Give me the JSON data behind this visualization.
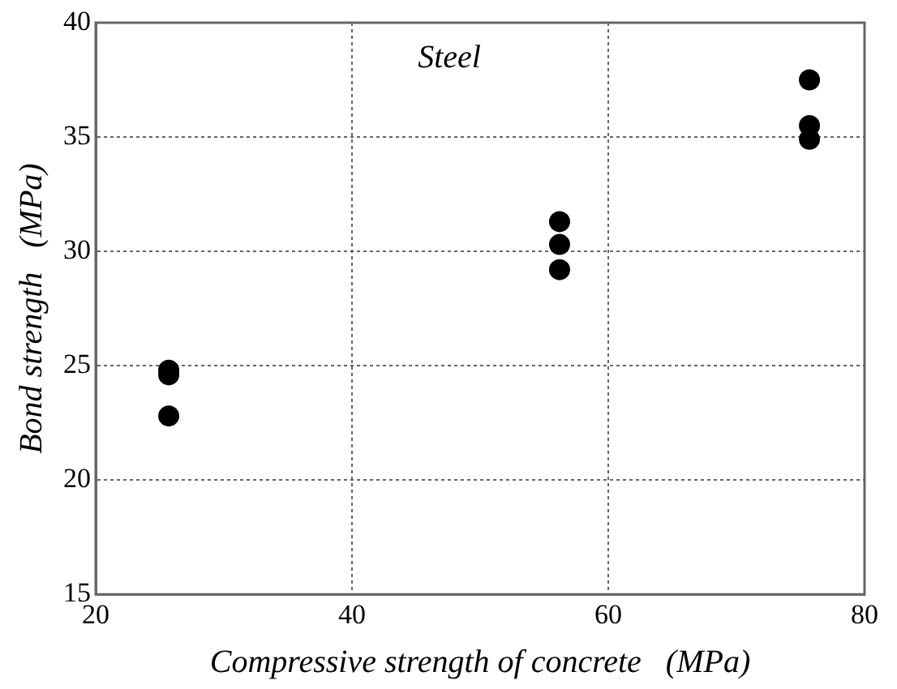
{
  "chart_data": {
    "type": "scatter",
    "xlabel": "Compressive strength of concrete   (MPa)",
    "ylabel": "Bond strength   (MPa)",
    "x": [
      25.7,
      25.7,
      25.7,
      56.2,
      56.2,
      56.2,
      75.7,
      75.7,
      75.7
    ],
    "values": [
      24.8,
      24.6,
      22.8,
      31.3,
      30.3,
      29.2,
      37.5,
      35.5,
      34.9
    ],
    "color": "#000000",
    "marker": "circle",
    "xlim": [
      20,
      80
    ],
    "xticks": [
      20,
      40,
      60,
      80
    ],
    "ylim": [
      15,
      40
    ],
    "yticks": [
      15,
      20,
      25,
      30,
      35,
      40
    ],
    "grid": true,
    "legend": false,
    "annotations": [
      "Steel"
    ]
  }
}
